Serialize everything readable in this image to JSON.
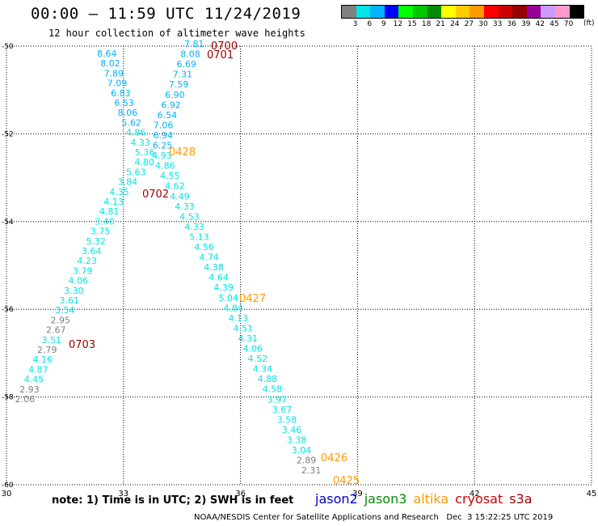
{
  "header": {
    "title": "00:00 — 11:59 UTC 11/24/2019",
    "subtitle": "12 hour collection of altimeter wave heights"
  },
  "legend": {
    "unit_label": "(ft)",
    "bins": [
      {
        "label": "3",
        "color": "#808080"
      },
      {
        "label": "6",
        "color": "#00e5e5"
      },
      {
        "label": "9",
        "color": "#00b2ff"
      },
      {
        "label": "12",
        "color": "#0000ff"
      },
      {
        "label": "15",
        "color": "#00ff00"
      },
      {
        "label": "18",
        "color": "#00c800"
      },
      {
        "label": "21",
        "color": "#008c00"
      },
      {
        "label": "24",
        "color": "#ffff00"
      },
      {
        "label": "27",
        "color": "#ffcc00"
      },
      {
        "label": "30",
        "color": "#ff9900"
      },
      {
        "label": "33",
        "color": "#ff0000"
      },
      {
        "label": "36",
        "color": "#cc0000"
      },
      {
        "label": "39",
        "color": "#990000"
      },
      {
        "label": "42",
        "color": "#990099"
      },
      {
        "label": "45",
        "color": "#cc99ff"
      },
      {
        "label": "70",
        "color": "#ff99cc"
      },
      {
        "label": "",
        "color": "#000000"
      }
    ]
  },
  "map": {
    "lon_range": [
      30,
      45
    ],
    "lat_range": [
      -60,
      -50
    ],
    "lon_ticks": [
      "30",
      "33",
      "36",
      "39",
      "42",
      "45"
    ],
    "lat_ticks": [
      "-50",
      "-52",
      "-54",
      "-56",
      "-58",
      "-60"
    ],
    "tracks": {
      "track_a": {
        "name": "track-a",
        "points": [
          {
            "v": "8.64",
            "c": "#00b2ff"
          },
          {
            "v": "8.02",
            "c": "#00b2ff"
          },
          {
            "v": "7.89",
            "c": "#00b2ff"
          },
          {
            "v": "7.09",
            "c": "#00b2ff"
          },
          {
            "v": "6.83",
            "c": "#00b2ff"
          },
          {
            "v": "6.53",
            "c": "#00b2ff"
          },
          {
            "v": "8.06",
            "c": "#00b2ff"
          },
          {
            "v": "5.62",
            "c": "#00b2ff"
          },
          {
            "v": "4.86",
            "c": "#00e5e5"
          },
          {
            "v": "4.33",
            "c": "#00e5e5"
          },
          {
            "v": "5.36",
            "c": "#00e5e5"
          },
          {
            "v": "4.80",
            "c": "#00e5e5"
          },
          {
            "v": "5.63",
            "c": "#00e5e5"
          },
          {
            "v": "3.84",
            "c": "#00e5e5"
          },
          {
            "v": "4.35",
            "c": "#00e5e5"
          },
          {
            "v": "4.13",
            "c": "#00e5e5"
          },
          {
            "v": "4.81",
            "c": "#00e5e5"
          },
          {
            "v": "3.40",
            "c": "#00e5e5"
          },
          {
            "v": "3.75",
            "c": "#00e5e5"
          },
          {
            "v": "5.32",
            "c": "#00e5e5"
          },
          {
            "v": "3.64",
            "c": "#00e5e5"
          },
          {
            "v": "4.23",
            "c": "#00e5e5"
          },
          {
            "v": "3.79",
            "c": "#00e5e5"
          },
          {
            "v": "4.06",
            "c": "#00e5e5"
          },
          {
            "v": "3.30",
            "c": "#00e5e5"
          },
          {
            "v": "3.61",
            "c": "#00e5e5"
          },
          {
            "v": "3.54",
            "c": "#00e5e5"
          },
          {
            "v": "2.95",
            "c": "#808080"
          },
          {
            "v": "2.67",
            "c": "#808080"
          },
          {
            "v": "3.51",
            "c": "#00e5e5"
          },
          {
            "v": "2.79",
            "c": "#808080"
          },
          {
            "v": "4.16",
            "c": "#00e5e5"
          },
          {
            "v": "4.87",
            "c": "#00e5e5"
          },
          {
            "v": "4.45",
            "c": "#00e5e5"
          },
          {
            "v": "2.93",
            "c": "#808080"
          },
          {
            "v": "2.06",
            "c": "#808080"
          }
        ]
      },
      "track_b": {
        "name": "track-b",
        "points": [
          {
            "v": "7.81",
            "c": "#00b2ff"
          },
          {
            "v": "8.08",
            "c": "#00b2ff"
          },
          {
            "v": "6.69",
            "c": "#00b2ff"
          },
          {
            "v": "7.31",
            "c": "#00b2ff"
          },
          {
            "v": "7.59",
            "c": "#00b2ff"
          },
          {
            "v": "6.90",
            "c": "#00b2ff"
          },
          {
            "v": "6.92",
            "c": "#00b2ff"
          },
          {
            "v": "6.54",
            "c": "#00b2ff"
          },
          {
            "v": "7.06",
            "c": "#00b2ff"
          },
          {
            "v": "6.94",
            "c": "#00b2ff"
          },
          {
            "v": "6.25",
            "c": "#00b2ff"
          },
          {
            "v": "4.93",
            "c": "#00e5e5"
          },
          {
            "v": "4.86",
            "c": "#00e5e5"
          },
          {
            "v": "4.55",
            "c": "#00e5e5"
          },
          {
            "v": "4.62",
            "c": "#00e5e5"
          },
          {
            "v": "4.49",
            "c": "#00e5e5"
          },
          {
            "v": "4.33",
            "c": "#00e5e5"
          },
          {
            "v": "4.53",
            "c": "#00e5e5"
          },
          {
            "v": "4.33",
            "c": "#00e5e5"
          },
          {
            "v": "5.13",
            "c": "#00e5e5"
          },
          {
            "v": "4.56",
            "c": "#00e5e5"
          },
          {
            "v": "4.74",
            "c": "#00e5e5"
          },
          {
            "v": "4.38",
            "c": "#00e5e5"
          },
          {
            "v": "4.64",
            "c": "#00e5e5"
          },
          {
            "v": "4.39",
            "c": "#00e5e5"
          },
          {
            "v": "5.04",
            "c": "#00e5e5"
          },
          {
            "v": "4.84",
            "c": "#00e5e5"
          },
          {
            "v": "4.13",
            "c": "#00e5e5"
          },
          {
            "v": "4.51",
            "c": "#00e5e5"
          },
          {
            "v": "4.31",
            "c": "#00e5e5"
          },
          {
            "v": "4.06",
            "c": "#00e5e5"
          },
          {
            "v": "4.52",
            "c": "#00e5e5"
          },
          {
            "v": "4.34",
            "c": "#00e5e5"
          },
          {
            "v": "4.88",
            "c": "#00e5e5"
          },
          {
            "v": "4.58",
            "c": "#00e5e5"
          },
          {
            "v": "3.97",
            "c": "#00e5e5"
          },
          {
            "v": "3.67",
            "c": "#00e5e5"
          },
          {
            "v": "3.58",
            "c": "#00e5e5"
          },
          {
            "v": "3.46",
            "c": "#00e5e5"
          },
          {
            "v": "3.38",
            "c": "#00e5e5"
          },
          {
            "v": "3.04",
            "c": "#00e5e5"
          },
          {
            "v": "2.89",
            "c": "#808080"
          },
          {
            "v": "2.31",
            "c": "#808080"
          }
        ]
      }
    },
    "time_labels": [
      {
        "text": "0700",
        "color": "#990000"
      },
      {
        "text": "0701",
        "color": "#990000"
      },
      {
        "text": "0428",
        "color": "#ff9900"
      },
      {
        "text": "0702",
        "color": "#990000"
      },
      {
        "text": "0427",
        "color": "#ff9900"
      },
      {
        "text": "0703",
        "color": "#990000"
      },
      {
        "text": "0426",
        "color": "#ff9900"
      },
      {
        "text": "0425",
        "color": "#ff9900"
      }
    ]
  },
  "footer": {
    "note": "note: 1) Time is in UTC; 2) SWH is in feet",
    "satellites": [
      {
        "name": "jason2",
        "color": "#0000cc"
      },
      {
        "name": "jason3",
        "color": "#008c00"
      },
      {
        "name": "altika",
        "color": "#ff9900"
      },
      {
        "name": "cryosat",
        "color": "#cc0000"
      },
      {
        "name": "s3a",
        "color": "#990000"
      }
    ],
    "credit": "NOAA/NESDIS Center for Satellite Applications and Research   Dec  3 15:22:25 UTC 2019"
  }
}
